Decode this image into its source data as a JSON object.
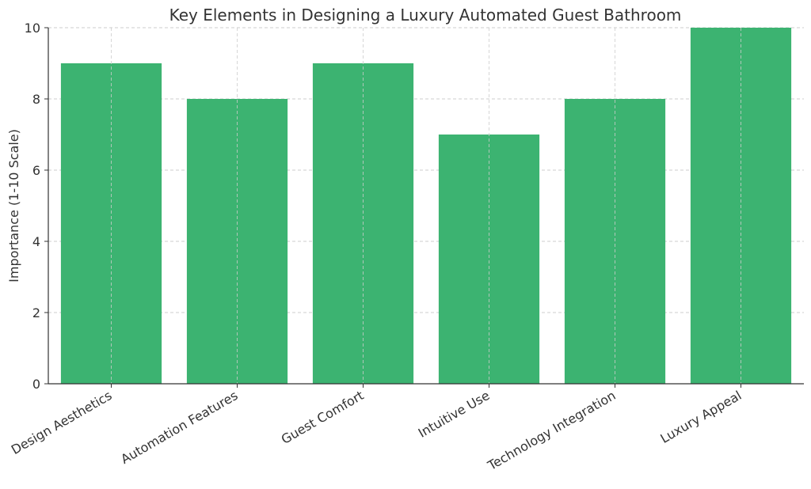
{
  "chart_data": {
    "type": "bar",
    "title": "Key Elements in Designing a Luxury Automated Guest Bathroom",
    "xlabel": "",
    "ylabel": "Importance (1-10 Scale)",
    "categories": [
      "Design Aesthetics",
      "Automation Features",
      "Guest Comfort",
      "Intuitive Use",
      "Technology Integration",
      "Luxury Appeal"
    ],
    "values": [
      9,
      8,
      9,
      7,
      8,
      10
    ],
    "ylim": [
      0,
      10
    ],
    "yticks": [
      0,
      2,
      4,
      6,
      8,
      10
    ],
    "grid": true,
    "bar_color": "#3cb371",
    "legend": "none"
  }
}
